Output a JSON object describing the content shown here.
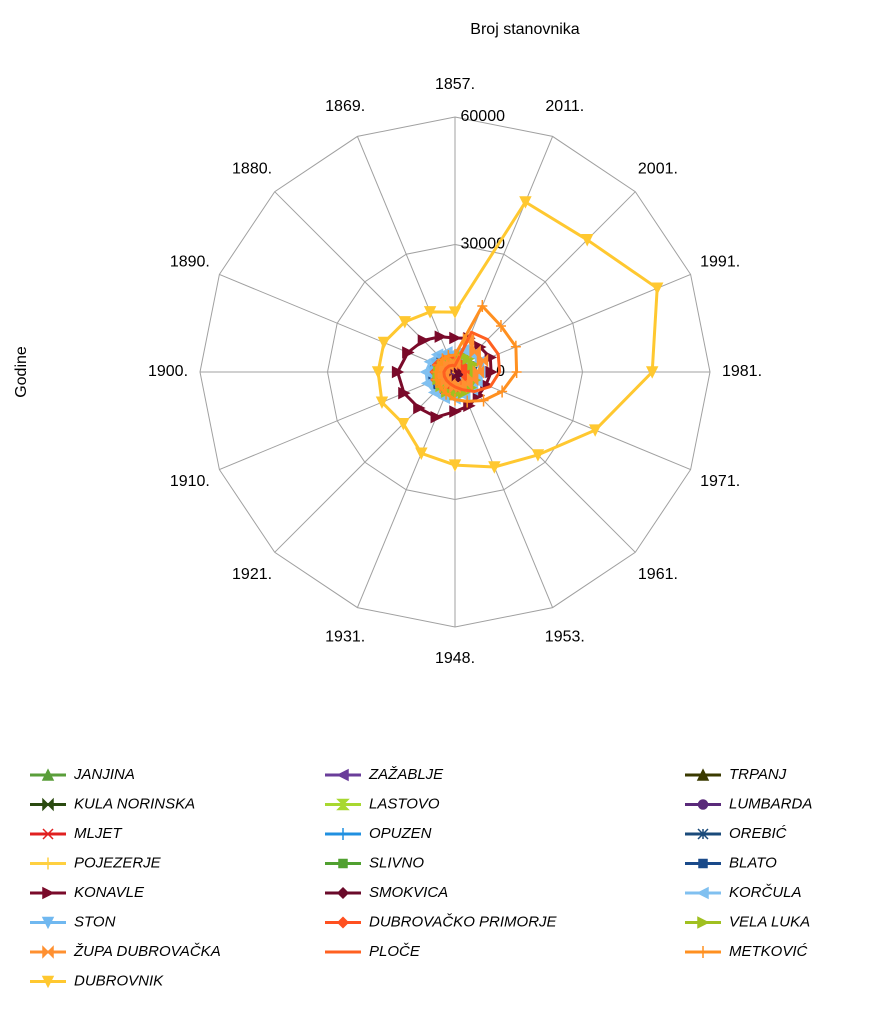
{
  "chart_data": {
    "type": "radar",
    "title": "Broj stanovnika",
    "y_label": "Godine",
    "categories": [
      "1857.",
      "2011.",
      "2001.",
      "1991.",
      "1981.",
      "1971.",
      "1961.",
      "1953.",
      "1948.",
      "1931.",
      "1921.",
      "1910.",
      "1900.",
      "1890.",
      "1880.",
      "1869."
    ],
    "ylim": [
      0,
      60000
    ],
    "yticks": [
      0,
      30000,
      60000
    ],
    "grid": true,
    "legend": "bottom",
    "series": [
      {
        "name": "JANJINA",
        "color": "#5a9e3a",
        "marker": "triangle",
        "values": [
          1500,
          550,
          600,
          700,
          750,
          900,
          1100,
          1300,
          1400,
          1500,
          1600,
          1700,
          1700,
          1650,
          1600,
          1550
        ]
      },
      {
        "name": "ZAŽABLJE",
        "color": "#6a3d9a",
        "marker": "triangle-left",
        "values": [
          1500,
          750,
          900,
          1100,
          1200,
          1400,
          1600,
          1800,
          1900,
          2000,
          2100,
          2200,
          2100,
          2000,
          1800,
          1600
        ]
      },
      {
        "name": "TRPANJ",
        "color": "#3a3a00",
        "marker": "triangle",
        "values": [
          1200,
          700,
          750,
          800,
          850,
          900,
          1000,
          1200,
          1300,
          1400,
          1500,
          1600,
          1500,
          1400,
          1300,
          1250
        ]
      },
      {
        "name": "KULA NORINSKA",
        "color": "#2a4a10",
        "marker": "bowtie",
        "values": [
          1800,
          1750,
          1900,
          2000,
          2100,
          2200,
          2300,
          2400,
          2400,
          2300,
          2200,
          2200,
          2100,
          2000,
          1900,
          1850
        ]
      },
      {
        "name": "LASTOVO",
        "color": "#a8d830",
        "marker": "hourglass",
        "values": [
          1100,
          800,
          850,
          1200,
          1300,
          1400,
          1700,
          1900,
          2000,
          1800,
          1700,
          1800,
          1700,
          1500,
          1300,
          1200
        ]
      },
      {
        "name": "LUMBARDA",
        "color": "#5a2a7a",
        "marker": "circle",
        "values": [
          1000,
          1200,
          1200,
          1200,
          1200,
          1100,
          1100,
          1200,
          1200,
          1100,
          1100,
          1200,
          1100,
          1100,
          1050,
          1000
        ]
      },
      {
        "name": "MLJET",
        "color": "#e02020",
        "marker": "x",
        "values": [
          1600,
          1100,
          1100,
          1300,
          1500,
          1800,
          2100,
          2400,
          2600,
          2900,
          2800,
          2800,
          2700,
          2500,
          2000,
          1800
        ]
      },
      {
        "name": "OPUZEN",
        "color": "#2090e0",
        "marker": "plus",
        "values": [
          1500,
          3250,
          3200,
          3300,
          3200,
          3000,
          2900,
          2700,
          2600,
          2400,
          2200,
          2000,
          1900,
          1800,
          1700,
          1600
        ]
      },
      {
        "name": "OREBIĆ",
        "color": "#1a4a7a",
        "marker": "star",
        "values": [
          3800,
          4100,
          4100,
          4200,
          4000,
          3900,
          4000,
          4200,
          4300,
          4500,
          4700,
          4800,
          4700,
          4500,
          4200,
          4000
        ]
      },
      {
        "name": "POJEZERJE",
        "color": "#ffd040",
        "marker": "plus",
        "values": [
          900,
          1000,
          1200,
          1300,
          1500,
          1700,
          1900,
          2000,
          2100,
          2100,
          2100,
          2200,
          2100,
          2000,
          1800,
          1200
        ]
      },
      {
        "name": "SLIVNO",
        "color": "#50a030",
        "marker": "square",
        "values": [
          1500,
          1900,
          2100,
          2300,
          2500,
          2700,
          2900,
          3100,
          3300,
          3200,
          3000,
          3000,
          2800,
          2600,
          2200,
          1800
        ]
      },
      {
        "name": "BLATO",
        "color": "#1a4a8a",
        "marker": "square",
        "values": [
          3500,
          3600,
          3700,
          3800,
          4000,
          4100,
          4300,
          4400,
          4500,
          5500,
          5700,
          5800,
          5600,
          5300,
          4800,
          3900
        ]
      },
      {
        "name": "KONAVLE",
        "color": "#7a0a2a",
        "marker": "triangle-right",
        "values": [
          8000,
          8600,
          8300,
          9000,
          8500,
          7900,
          7800,
          8600,
          9300,
          11500,
          12000,
          13000,
          13500,
          12000,
          10500,
          9000
        ]
      },
      {
        "name": "SMOKVICA",
        "color": "#6a0a2a",
        "marker": "diamond",
        "values": [
          1500,
          900,
          1000,
          1100,
          1200,
          1400,
          1600,
          1800,
          1900,
          2000,
          2100,
          2200,
          2100,
          1900,
          1700,
          1600
        ]
      },
      {
        "name": "KORČULA",
        "color": "#80c0f0",
        "marker": "triangle-left",
        "values": [
          4500,
          5600,
          5900,
          6000,
          5800,
          5600,
          5800,
          6000,
          6200,
          6600,
          6800,
          7000,
          6800,
          6300,
          5800,
          5000
        ]
      },
      {
        "name": "STON",
        "color": "#70b8f0",
        "marker": "triangle-down",
        "values": [
          3500,
          2600,
          2600,
          2800,
          3000,
          3300,
          3600,
          4000,
          4200,
          4500,
          4800,
          5000,
          4900,
          4700,
          4200,
          3800
        ]
      },
      {
        "name": "DUBROVAČKO PRIMORJE",
        "color": "#ff5020",
        "marker": "diamond",
        "values": [
          3000,
          2200,
          2200,
          2500,
          2800,
          3100,
          3500,
          4000,
          4200,
          4400,
          4600,
          4800,
          4600,
          4400,
          3800,
          3200
        ]
      },
      {
        "name": "VELA LUKA",
        "color": "#a0c020",
        "marker": "triangle-right",
        "values": [
          2000,
          4100,
          4400,
          4600,
          4800,
          5000,
          5200,
          5300,
          5200,
          5000,
          4600,
          4300,
          3800,
          3200,
          2700,
          2300
        ]
      },
      {
        "name": "ŽUPA DUBROVAČKA",
        "color": "#ff9030",
        "marker": "bowtie",
        "values": [
          2000,
          8300,
          6700,
          7000,
          5500,
          4500,
          4000,
          3700,
          3500,
          3200,
          3000,
          2900,
          2800,
          2600,
          2300,
          2100
        ]
      },
      {
        "name": "PLOČE",
        "color": "#ff6020",
        "marker": "none",
        "values": [
          1500,
          10100,
          10800,
          11000,
          10500,
          9000,
          6500,
          4500,
          3500,
          3000,
          2800,
          2700,
          2600,
          2300,
          2000,
          1700
        ]
      },
      {
        "name": "METKOVIĆ",
        "color": "#ff9020",
        "marker": "plus",
        "values": [
          4000,
          16800,
          15300,
          15500,
          14500,
          12000,
          9500,
          7500,
          6500,
          5500,
          5000,
          4800,
          4500,
          4300,
          4200,
          4100
        ]
      },
      {
        "name": "DUBROVNIK",
        "color": "#ffc830",
        "marker": "triangle-down",
        "values": [
          14100,
          43300,
          44000,
          51500,
          46400,
          35700,
          27600,
          24200,
          21900,
          20700,
          17200,
          18600,
          18100,
          18100,
          16700,
          15300
        ]
      }
    ]
  }
}
